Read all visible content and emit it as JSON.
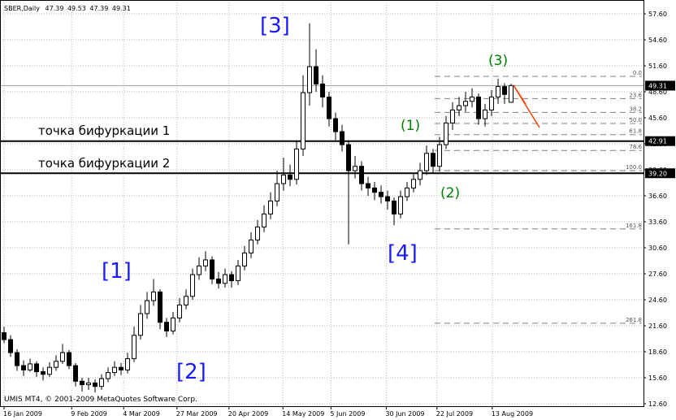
{
  "chart_data": {
    "type": "candlestick",
    "title": "SBER,Daily",
    "watermark": "UMIS MT4, © 2001-2009 MetaQuotes Software Corp.",
    "open": [
      20.8,
      20.0,
      18.5,
      17.0,
      16.5,
      17.2,
      16.3,
      16.0,
      16.8,
      17.5,
      18.5,
      17.0,
      15.2,
      14.8,
      15.0,
      14.6,
      15.5,
      16.2,
      16.8,
      16.5,
      17.8,
      20.5,
      23.0,
      24.5,
      25.5,
      22.0,
      21.0,
      22.5,
      24.0,
      25.0,
      27.5,
      28.5,
      29.2,
      27.0,
      26.5,
      27.5,
      26.8,
      28.5,
      30.0,
      31.5,
      33.0,
      34.5,
      36.0,
      38.0,
      39.0,
      38.5,
      42.0,
      48.5,
      51.5,
      49.5,
      48.0,
      45.5,
      44.0,
      42.5,
      39.5,
      40.0,
      38.0,
      37.5,
      37.0,
      36.5,
      36.0,
      34.5,
      36.5,
      37.5,
      38.5,
      39.5,
      41.5,
      40.0,
      42.5,
      45.0,
      46.5,
      47.0,
      47.5,
      48.0,
      45.5,
      46.5,
      48.0,
      49.2,
      47.39
    ],
    "high": [
      21.5,
      20.5,
      18.9,
      17.6,
      17.8,
      17.5,
      16.8,
      17.4,
      18.2,
      19.5,
      18.8,
      17.3,
      15.6,
      15.6,
      15.4,
      16.0,
      16.8,
      17.5,
      17.3,
      18.5,
      21.5,
      24.0,
      25.5,
      27.0,
      25.8,
      22.5,
      23.2,
      24.8,
      25.8,
      28.2,
      29.5,
      30.2,
      29.6,
      27.8,
      28.2,
      27.9,
      29.2,
      30.8,
      32.4,
      33.8,
      35.5,
      37.0,
      39.5,
      41.0,
      40.2,
      43.0,
      50.5,
      56.5,
      53.5,
      50.5,
      48.6,
      46.2,
      44.8,
      43.0,
      41.2,
      40.6,
      38.8,
      38.2,
      37.8,
      37.2,
      36.4,
      37.2,
      38.2,
      39.2,
      40.4,
      42.4,
      42.0,
      43.4,
      45.8,
      47.4,
      48.0,
      48.6,
      49.0,
      48.4,
      47.2,
      48.8,
      50.1,
      49.6,
      49.53
    ],
    "low": [
      19.6,
      18.0,
      16.4,
      15.8,
      16.3,
      15.7,
      15.3,
      15.7,
      16.4,
      17.2,
      16.6,
      14.6,
      14.0,
      14.2,
      13.9,
      14.2,
      15.1,
      15.8,
      15.9,
      16.1,
      17.4,
      20.0,
      22.4,
      23.9,
      21.2,
      20.3,
      20.6,
      22.0,
      23.5,
      24.6,
      26.9,
      27.9,
      26.4,
      25.9,
      26.0,
      26.0,
      26.3,
      28.0,
      29.4,
      31.0,
      32.4,
      33.9,
      35.4,
      37.2,
      37.7,
      37.9,
      41.2,
      47.0,
      48.6,
      46.8,
      44.6,
      42.8,
      41.7,
      31.0,
      38.6,
      37.2,
      36.6,
      36.1,
      35.7,
      35.0,
      33.2,
      34.0,
      36.0,
      37.0,
      37.8,
      39.0,
      39.2,
      39.4,
      42.0,
      44.2,
      45.8,
      46.3,
      46.8,
      44.8,
      44.6,
      45.8,
      47.2,
      47.2,
      47.39
    ],
    "close": [
      20.0,
      18.5,
      17.0,
      16.5,
      17.2,
      16.3,
      16.0,
      16.8,
      17.5,
      18.5,
      17.0,
      15.2,
      14.8,
      15.0,
      14.6,
      15.5,
      16.2,
      16.8,
      16.5,
      17.8,
      20.5,
      23.0,
      24.5,
      25.5,
      22.0,
      21.0,
      22.5,
      24.0,
      25.0,
      27.5,
      28.5,
      29.2,
      27.0,
      26.5,
      27.5,
      26.8,
      28.5,
      30.0,
      31.5,
      33.0,
      34.5,
      36.0,
      38.0,
      39.0,
      38.5,
      42.0,
      48.5,
      51.5,
      49.5,
      48.0,
      45.5,
      44.0,
      42.5,
      39.5,
      40.0,
      38.0,
      37.5,
      37.0,
      36.5,
      36.0,
      34.5,
      36.5,
      37.5,
      38.5,
      39.5,
      41.5,
      40.0,
      42.5,
      45.0,
      46.5,
      47.0,
      47.5,
      48.0,
      45.5,
      46.5,
      48.0,
      49.2,
      48.3,
      49.31
    ],
    "xlim": [
      -0.5,
      98.5
    ],
    "xticks": [
      {
        "value": 0,
        "label": "16 Jan 2009"
      },
      {
        "value": 10.4,
        "label": "9 Feb 2009"
      },
      {
        "value": 18.4,
        "label": "4 Mar 2009"
      },
      {
        "value": 26.6,
        "label": "27 Mar 2009"
      },
      {
        "value": 34.6,
        "label": "20 Apr 2009"
      },
      {
        "value": 42.9,
        "label": "14 May 2009"
      },
      {
        "value": 50.3,
        "label": "5 Jun 2009"
      },
      {
        "value": 58.8,
        "label": "30 Jun 2009"
      },
      {
        "value": 66.6,
        "label": "22 Jul 2009"
      },
      {
        "value": 75.1,
        "label": "13 Aug 2009"
      }
    ],
    "ylim": [
      12.6,
      57.6
    ],
    "yticks": [
      {
        "value": 12.6,
        "label": "12.60"
      },
      {
        "value": 15.6,
        "label": "15.60"
      },
      {
        "value": 18.6,
        "label": "18.60"
      },
      {
        "value": 21.6,
        "label": "21.60"
      },
      {
        "value": 24.6,
        "label": "24.60"
      },
      {
        "value": 27.6,
        "label": "27.60"
      },
      {
        "value": 30.6,
        "label": "30.60"
      },
      {
        "value": 33.6,
        "label": "33.60"
      },
      {
        "value": 36.6,
        "label": "36.60"
      },
      {
        "value": 39.6,
        "label": "39.60"
      },
      {
        "value": 42.6,
        "label": "42.60"
      },
      {
        "value": 45.6,
        "label": "45.60"
      },
      {
        "value": 48.6,
        "label": "48.60"
      },
      {
        "value": 51.6,
        "label": "51.60"
      },
      {
        "value": 54.6,
        "label": "54.60"
      },
      {
        "value": 57.6,
        "label": "57.60"
      }
    ],
    "grid": true,
    "hlines": [
      42.91,
      {
        "value": 39.2,
        "label": "39.20"
      }
    ],
    "fibo": {
      "high": 50.38,
      "low": 39.5,
      "levels": [
        {
          "value": 0,
          "label": "0.0"
        },
        23.6,
        38.2,
        {
          "value": 50,
          "label": "50.0"
        },
        61.8,
        78.6,
        {
          "value": 100,
          "label": "100.0"
        },
        161.8,
        261.8
      ]
    },
    "annotations": {
      "wave3": "[3]",
      "wave1": "[1]",
      "wave2": "[2]",
      "wave4": "[4]",
      "sub1": "(1)",
      "sub2": "(2)",
      "sub3": "(3)",
      "bif1": "точка бифуркации 1",
      "bif2": "точка бифуркации 2"
    }
  }
}
